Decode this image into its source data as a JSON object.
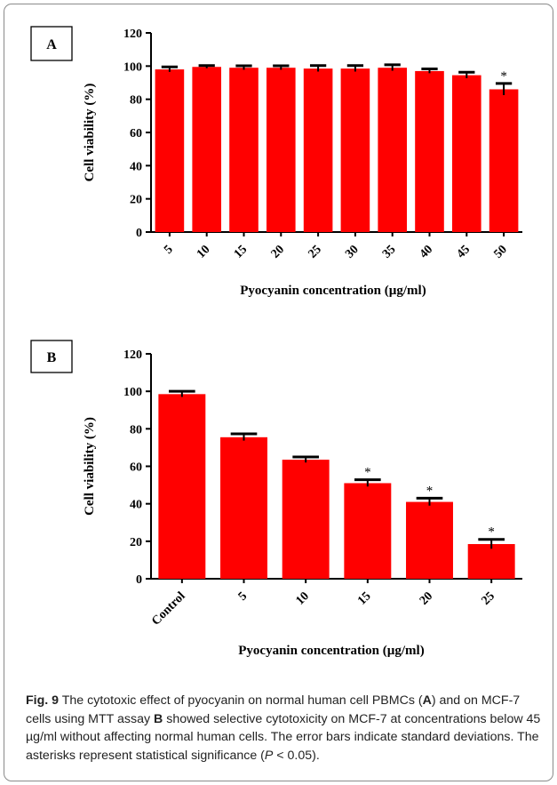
{
  "chart_data": [
    {
      "type": "bar",
      "panel_label": "A",
      "xlabel": "Pyocyanin concentration (µg/ml)",
      "ylabel": "Cell viability (%)",
      "ylim": [
        0,
        120
      ],
      "yticks": [
        0,
        20,
        40,
        60,
        80,
        100,
        120
      ],
      "grid": false,
      "bar_color": "#ff0000",
      "categories": [
        "5",
        "10",
        "15",
        "20",
        "25",
        "30",
        "35",
        "40",
        "45",
        "50"
      ],
      "values": [
        98,
        99.5,
        99,
        99,
        98.5,
        98.5,
        99,
        97,
        94.5,
        86
      ],
      "errors": [
        1.5,
        0.8,
        1.2,
        1.2,
        1.8,
        1.8,
        1.8,
        1.3,
        1.8,
        3.5
      ],
      "significance": [
        "",
        "",
        "",
        "",
        "",
        "",
        "",
        "",
        "",
        "*"
      ]
    },
    {
      "type": "bar",
      "panel_label": "B",
      "xlabel": "Pyocyanin concentration (µg/ml)",
      "ylabel": "Cell viability (%)",
      "ylim": [
        0,
        120
      ],
      "yticks": [
        0,
        20,
        40,
        60,
        80,
        100,
        120
      ],
      "grid": false,
      "bar_color": "#ff0000",
      "categories": [
        "Control",
        "5",
        "10",
        "15",
        "20",
        "25"
      ],
      "values": [
        98.5,
        75.5,
        63.5,
        51,
        41,
        18.5
      ],
      "errors": [
        1.5,
        1.8,
        1.5,
        1.8,
        2,
        2.5
      ],
      "significance": [
        "",
        "",
        "",
        "*",
        "*",
        "*"
      ]
    }
  ],
  "caption": {
    "label": "Fig. 9",
    "parts": [
      {
        "text": " The cytotoxic effect of pyocyanin on normal human cell PBMCs (",
        "bold": false
      },
      {
        "text": "A",
        "bold": true
      },
      {
        "text": ") and on MCF-7 cells using MTT assay ",
        "bold": false
      },
      {
        "text": "B",
        "bold": true
      },
      {
        "text": " showed selective cytotoxicity on MCF-7 at concentrations below 45 µg/ml without affecting normal human cells. The error bars indicate standard deviations. The asterisks represent statistical significance (",
        "bold": false
      },
      {
        "text": "P",
        "italic": true
      },
      {
        "text": " < 0.05).",
        "bold": false
      }
    ]
  }
}
